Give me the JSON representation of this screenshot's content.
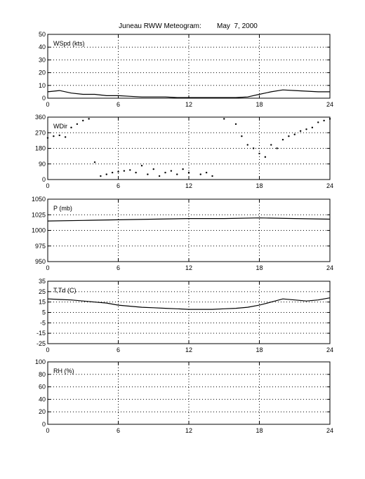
{
  "title": "Juneau RWW Meteogram:        May  7, 2000",
  "chart_data": [
    {
      "type": "line",
      "panel_label": "WSpd (kts)",
      "ylim": [
        0,
        50
      ],
      "yticks": [
        "0",
        "10",
        "20",
        "30",
        "40",
        "50"
      ],
      "xlim": [
        0,
        24
      ],
      "xticks": [
        "0",
        "6",
        "12",
        "18",
        "24"
      ],
      "grid": true,
      "series": [
        {
          "x": [
            0,
            1,
            2,
            3,
            4,
            5,
            6,
            7,
            8,
            9,
            10,
            11,
            12,
            13,
            14,
            15,
            16,
            17,
            18,
            19,
            20,
            21,
            22,
            23,
            24
          ],
          "values": [
            5,
            6,
            4,
            3,
            3,
            2,
            2,
            1.5,
            1,
            1,
            1,
            0.5,
            0.5,
            0.5,
            0.5,
            0.5,
            0.5,
            1,
            3,
            5,
            6.5,
            6,
            5.5,
            5,
            5
          ]
        }
      ]
    },
    {
      "type": "scatter",
      "panel_label": "WDir",
      "ylim": [
        0,
        360
      ],
      "yticks": [
        "0",
        "90",
        "180",
        "270",
        "360"
      ],
      "xlim": [
        0,
        24
      ],
      "xticks": [
        "0",
        "6",
        "12",
        "18",
        "24"
      ],
      "grid": true,
      "series": [
        {
          "x": [
            0,
            0.5,
            1,
            1.5,
            2,
            2.5,
            3,
            3.5,
            4,
            4.5,
            5,
            5.5,
            6,
            6.5,
            7,
            7.5,
            8,
            8.5,
            9,
            9.5,
            10,
            10.5,
            11,
            11.5,
            12,
            13,
            13.5,
            14,
            15,
            16,
            16.5,
            17,
            17.5,
            18,
            18.5,
            19,
            19.5,
            20,
            20.5,
            21,
            21.5,
            22,
            22.5,
            23,
            23.5,
            24
          ],
          "values": [
            240,
            250,
            255,
            245,
            300,
            320,
            340,
            350,
            100,
            20,
            30,
            40,
            45,
            50,
            55,
            40,
            80,
            30,
            60,
            20,
            40,
            50,
            30,
            60,
            40,
            30,
            40,
            20,
            350,
            320,
            250,
            200,
            180,
            150,
            130,
            200,
            180,
            230,
            250,
            260,
            280,
            290,
            300,
            330,
            340,
            350
          ]
        }
      ]
    },
    {
      "type": "line",
      "panel_label": "P (mb)",
      "ylim": [
        950,
        1050
      ],
      "yticks": [
        "950",
        "975",
        "1000",
        "1025",
        "1050"
      ],
      "xlim": [
        0,
        24
      ],
      "xticks": [
        "0",
        "6",
        "12",
        "18",
        "24"
      ],
      "grid": true,
      "series": [
        {
          "x": [
            0,
            3,
            6,
            9,
            12,
            15,
            18,
            21,
            24
          ],
          "values": [
            1015,
            1016,
            1017,
            1018,
            1019,
            1019,
            1020,
            1019,
            1018
          ]
        }
      ]
    },
    {
      "type": "line",
      "panel_label": "T,Td (C)",
      "ylim": [
        -25,
        35
      ],
      "yticks": [
        "-25",
        "-15",
        "-5",
        "5",
        "15",
        "25",
        "35"
      ],
      "xlim": [
        0,
        24
      ],
      "xticks": [
        "0",
        "6",
        "12",
        "18",
        "24"
      ],
      "grid": true,
      "series": [
        {
          "x": [
            0,
            1,
            2,
            3,
            4,
            5,
            6,
            7,
            8,
            9,
            10,
            11,
            12,
            13,
            14,
            15,
            16,
            17,
            18,
            19,
            20,
            21,
            22,
            23,
            24
          ],
          "values": [
            18,
            17.5,
            17,
            16,
            15,
            14,
            12,
            11,
            10,
            9.5,
            9,
            8.5,
            8,
            8,
            8,
            8.5,
            9,
            10,
            12,
            15,
            18,
            17,
            16,
            17,
            19
          ]
        }
      ]
    },
    {
      "type": "line",
      "panel_label": "RH (%)",
      "ylim": [
        0,
        100
      ],
      "yticks": [
        "0",
        "20",
        "40",
        "60",
        "80",
        "100"
      ],
      "xlim": [
        0,
        24
      ],
      "xticks": [
        "0",
        "6",
        "12",
        "18",
        "24"
      ],
      "grid": true,
      "series": []
    }
  ]
}
